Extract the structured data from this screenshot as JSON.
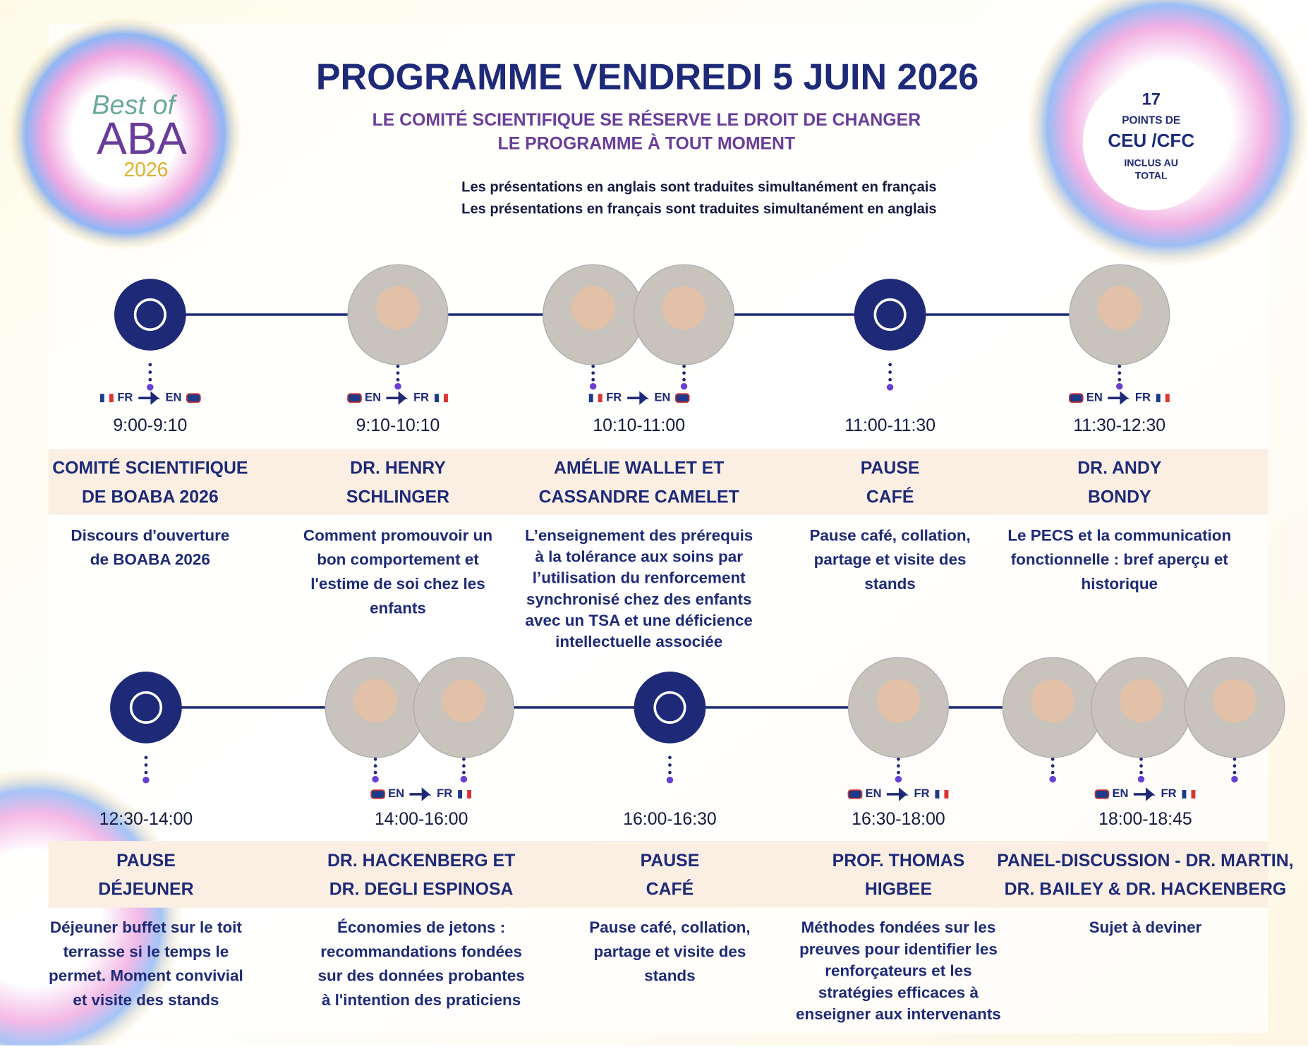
{
  "logo": {
    "line1": "Best of",
    "line2": "ABA",
    "line3": "2026"
  },
  "header": {
    "title": "PROGRAMME VENDREDI 5 JUIN 2026",
    "subtitle": [
      "LE COMITÉ SCIENTIFIQUE SE RÉSERVE LE DROIT DE CHANGER",
      "LE PROGRAMME À TOUT MOMENT"
    ],
    "notes": [
      "Les présentations en anglais sont traduites simultanément en français",
      "Les présentations en français sont traduites simultanément en anglais"
    ]
  },
  "badge": {
    "number": "17",
    "line1": "POINTS DE",
    "line2": "CEU /CFC",
    "line3": "INCLUS AU",
    "line4": "TOTAL"
  },
  "sessions": [
    {
      "time": "9:00-9:10",
      "lang": [
        "FR",
        "EN"
      ],
      "speaker": [
        "COMITÉ SCIENTIFIQUE",
        "DE BOABA 2026"
      ],
      "description": [
        "Discours d'ouverture",
        "de BOABA 2026"
      ]
    },
    {
      "time": "9:10-10:10",
      "lang": [
        "EN",
        "FR"
      ],
      "speaker": [
        "DR. HENRY",
        "SCHLINGER"
      ],
      "description": [
        "Comment promouvoir un",
        "bon comportement et",
        "l'estime de soi chez les",
        "enfants"
      ]
    },
    {
      "time": "10:10-11:00",
      "lang": [
        "FR",
        "EN"
      ],
      "speaker": [
        "AMÉLIE WALLET ET",
        "CASSANDRE CAMELET"
      ],
      "description": [
        "L’enseignement des prérequis",
        "à la tolérance aux soins par",
        "l’utilisation du renforcement",
        "synchronisé chez des enfants",
        "avec un TSA et une déficience",
        "intellectuelle associée"
      ]
    },
    {
      "time": "11:00-11:30",
      "speaker": [
        "PAUSE",
        "CAFÉ"
      ],
      "description": [
        "Pause café, collation,",
        "partage et visite des",
        "stands"
      ]
    },
    {
      "time": "11:30-12:30",
      "lang": [
        "EN",
        "FR"
      ],
      "speaker": [
        "DR. ANDY",
        "BONDY"
      ],
      "description": [
        "Le PECS et la communication",
        "fonctionnelle : bref aperçu et",
        "historique"
      ]
    },
    {
      "time": "12:30-14:00",
      "speaker": [
        "PAUSE",
        "DÉJEUNER"
      ],
      "description": [
        "Déjeuner buffet sur le toit",
        "terrasse si le temps le",
        "permet. Moment convivial",
        "et visite des stands"
      ]
    },
    {
      "time": "14:00-16:00",
      "lang": [
        "EN",
        "FR"
      ],
      "speaker": [
        "DR. HACKENBERG ET",
        "DR. DEGLI ESPINOSA"
      ],
      "description": [
        "Économies de jetons :",
        "recommandations fondées",
        "sur des données probantes",
        "à l'intention des praticiens"
      ]
    },
    {
      "time": "16:00-16:30",
      "speaker": [
        "PAUSE",
        "CAFÉ"
      ],
      "description": [
        "Pause café, collation,",
        "partage et visite des",
        "stands"
      ]
    },
    {
      "time": "16:30-18:00",
      "lang": [
        "EN",
        "FR"
      ],
      "speaker": [
        "PROF. THOMAS",
        "HIGBEE"
      ],
      "description": [
        "Méthodes fondées sur les",
        "preuves pour identifier les",
        "renforçateurs et les",
        "stratégies efficaces à",
        "enseigner aux intervenants"
      ]
    },
    {
      "time": "18:00-18:45",
      "lang": [
        "EN",
        "FR"
      ],
      "speaker": [
        "PANEL-DISCUSSION - DR. MARTIN,",
        "DR. BAILEY & DR. HACKENBERG"
      ],
      "description": [
        "Sujet à deviner"
      ]
    }
  ]
}
